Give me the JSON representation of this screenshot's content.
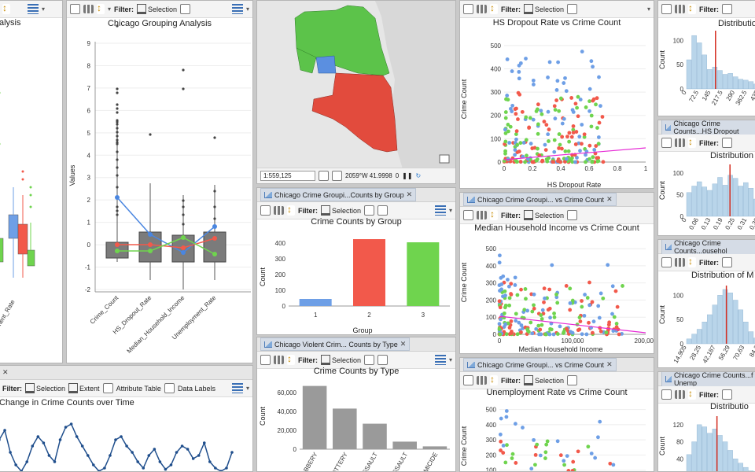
{
  "toolbar": {
    "filter_label": "Filter:",
    "selection": "Selection",
    "extent": "Extent",
    "attribute_table": "Attribute Table",
    "data_labels": "Data Labels"
  },
  "tabs": {
    "tab_counts_group": "Chicago Crime Groupi...Counts by Group",
    "tab_counts_type": "Chicago Violent Crim... Counts by Type",
    "tab_income": "Chicago Crime Groupi... vs Crime Count",
    "tab_unemp": "Chicago Crime Groupi... vs Crime Count",
    "tab_dist2": "Chicago Crime Counts...HS Dropout",
    "tab_dist3": "Chicago Crime Counts...ousehol",
    "tab_dist4": "Chicago Crime Counts...f Unemp"
  },
  "map": {
    "scale": "1:559,125",
    "coords": "2059°W 41.9998",
    "count": "0"
  },
  "charts": {
    "left_partial": {
      "title": "alysis",
      "tick": "oyment_Rate"
    },
    "box": {
      "title": "Chicago Grouping Analysis",
      "ylabel": "Values",
      "categories": [
        "Crime_Count",
        "HS_Dropout_Rate",
        "Median_Household_Income",
        "Unemployment_Rate"
      ],
      "yticks": [
        "9",
        "8",
        "7",
        "6",
        "5",
        "4",
        "3",
        "2",
        "1",
        "0",
        "-1",
        "-2"
      ]
    },
    "group": {
      "title": "Crime Counts by Group",
      "xlabel": "Group",
      "ylabel": "Count",
      "categories": [
        "1",
        "2",
        "3"
      ],
      "values": [
        45,
        425,
        405
      ],
      "colors": [
        "#6e9fe6",
        "#f2594b",
        "#6fd44e"
      ],
      "yticks": [
        "400",
        "300",
        "200",
        "100",
        "0"
      ]
    },
    "type": {
      "title": "Crime Counts by Type",
      "ylabel": "Count",
      "categories": [
        "ROBBERY",
        "BATTERY",
        "ASSAULT",
        "AL ASSAULT",
        "HOMICIDE"
      ],
      "values": [
        67000,
        43000,
        27000,
        8000,
        3000
      ],
      "yticks": [
        "60,000",
        "40,000",
        "20,000",
        "0"
      ]
    },
    "hs": {
      "title": "HS Dropout Rate vs Crime Count",
      "xlabel": "HS Dropout Rate",
      "ylabel": "Crime Count",
      "xticks": [
        "0",
        "0.2",
        "0.4",
        "0.6",
        "0.8",
        "1"
      ],
      "yticks": [
        "500",
        "400",
        "300",
        "200",
        "100",
        "0"
      ]
    },
    "income": {
      "title": "Median Household Income vs Crime Count",
      "xlabel": "Median Household Income",
      "ylabel": "Crime Count",
      "xticks": [
        "0",
        "100,000",
        "200,000"
      ],
      "yticks": [
        "500",
        "400",
        "300",
        "200",
        "100",
        "0"
      ]
    },
    "unemp": {
      "title": "Unemployment Rate vs Crime Count",
      "ylabel": "Crime Count",
      "yticks": [
        "500",
        "400",
        "300",
        "200",
        "100"
      ]
    },
    "time": {
      "title": "Change in Crime Counts over Time"
    },
    "dist1": {
      "title": "Distributio",
      "ylabel": "Count",
      "yticks": [
        "100",
        "50",
        "0"
      ],
      "xticks": [
        "0",
        "72.5",
        "145",
        "217.5",
        "290",
        "362.5",
        "435"
      ]
    },
    "dist2": {
      "title": "Distribution",
      "ylabel": "Count",
      "yticks": [
        "100",
        "50",
        "0"
      ],
      "xticks": [
        "0",
        "0.06",
        "0.13",
        "0.19",
        "0.25",
        "0.31",
        "0.38"
      ]
    },
    "dist3": {
      "title": "Distribution of M",
      "ylabel": "Count",
      "yticks": [
        "100",
        "50",
        "0"
      ],
      "xticks": [
        "14,905",
        "28,25",
        "42,187",
        "56,29",
        "70,63",
        "84,3"
      ]
    },
    "dist4": {
      "title": "Distributio",
      "ylabel": "Count",
      "yticks": [
        "120",
        "80",
        "40"
      ]
    }
  }
}
